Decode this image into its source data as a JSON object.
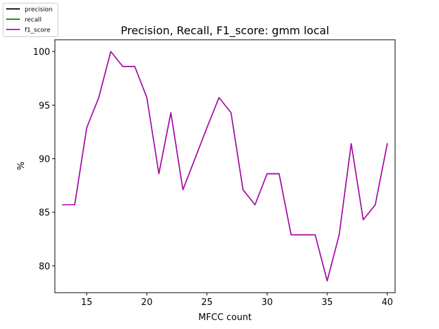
{
  "chart_data": {
    "type": "line",
    "title": "Precision, Recall, F1_score: gmm local",
    "xlabel": "MFCC count",
    "ylabel": "%",
    "xlim": [
      12.35,
      40.65
    ],
    "ylim": [
      77.5,
      101.1
    ],
    "xticks": [
      15,
      20,
      25,
      30,
      35,
      40
    ],
    "yticks": [
      80,
      85,
      90,
      95,
      100
    ],
    "legend_position": "top-left, outside plot area",
    "grid": false,
    "x": [
      13,
      14,
      15,
      16,
      17,
      18,
      19,
      20,
      21,
      22,
      23,
      24,
      25,
      26,
      27,
      28,
      29,
      30,
      31,
      32,
      33,
      34,
      35,
      36,
      37,
      38,
      39,
      40
    ],
    "series": [
      {
        "name": "precision",
        "color": "#000000",
        "values": [
          85.7,
          85.7,
          92.9,
          95.7,
          100.0,
          98.6,
          98.6,
          95.7,
          88.6,
          94.3,
          87.1,
          90.0,
          92.9,
          95.7,
          94.3,
          87.1,
          85.7,
          88.6,
          88.6,
          82.9,
          82.9,
          82.9,
          78.6,
          82.9,
          91.4,
          84.3,
          85.7,
          91.4
        ]
      },
      {
        "name": "recall",
        "color": "#008000",
        "values": [
          85.7,
          85.7,
          92.9,
          95.7,
          100.0,
          98.6,
          98.6,
          95.7,
          88.6,
          94.3,
          87.1,
          90.0,
          92.9,
          95.7,
          94.3,
          87.1,
          85.7,
          88.6,
          88.6,
          82.9,
          82.9,
          82.9,
          78.6,
          82.9,
          91.4,
          84.3,
          85.7,
          91.4
        ]
      },
      {
        "name": "f1_score",
        "color": "#bf00bf",
        "values": [
          85.7,
          85.7,
          92.9,
          95.7,
          100.0,
          98.6,
          98.6,
          95.7,
          88.6,
          94.3,
          87.1,
          90.0,
          92.9,
          95.7,
          94.3,
          87.1,
          85.7,
          88.6,
          88.6,
          82.9,
          82.9,
          82.9,
          78.6,
          82.9,
          91.4,
          84.3,
          85.7,
          91.4
        ]
      }
    ]
  }
}
